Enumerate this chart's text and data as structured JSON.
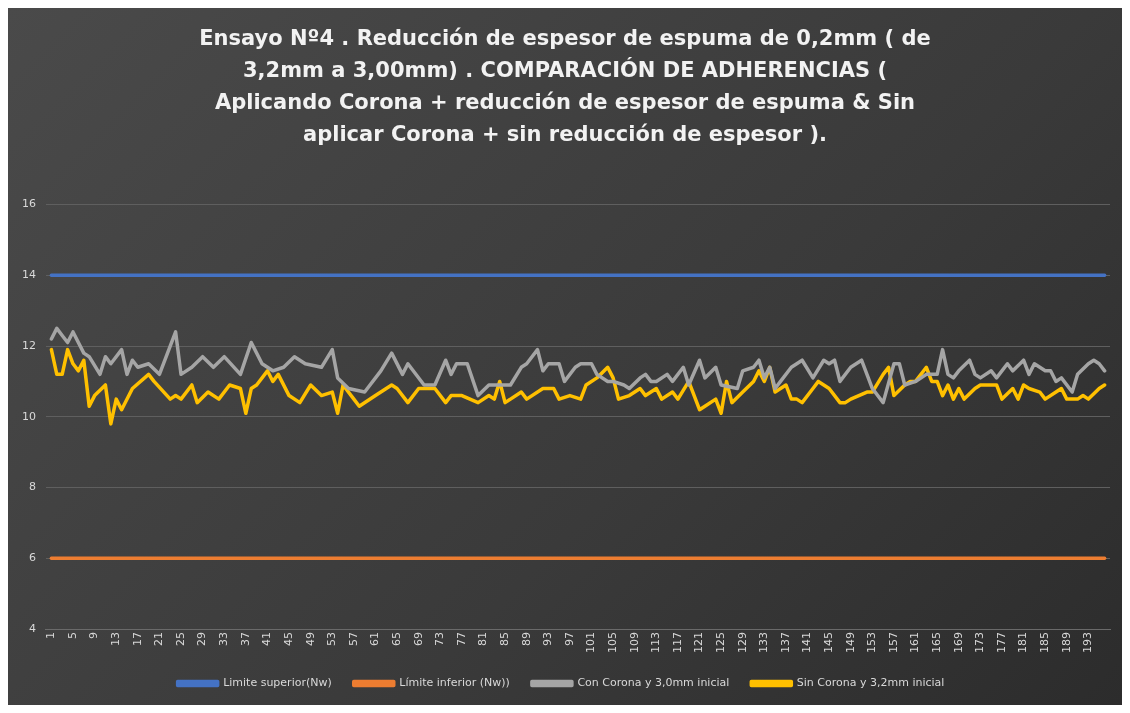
{
  "chart_data": {
    "type": "line",
    "title": "Ensayo Nº4 . Reducción de espesor de espuma de 0,2mm ( de 3,2mm a 3,00mm) . COMPARACIÓN DE ADHERENCIAS ( Aplicando Corona + reducción de espesor de espuma & Sin aplicar Corona + sin reducción de espesor ).",
    "xlim": [
      0,
      197
    ],
    "xticks": [
      1,
      5,
      9,
      13,
      17,
      21,
      25,
      29,
      33,
      37,
      41,
      45,
      49,
      53,
      57,
      61,
      65,
      69,
      73,
      77,
      81,
      85,
      89,
      93,
      97,
      101,
      105,
      109,
      113,
      117,
      121,
      125,
      129,
      133,
      137,
      141,
      145,
      149,
      153,
      157,
      161,
      165,
      169,
      173,
      177,
      181,
      185,
      189,
      193
    ],
    "ylim": [
      4,
      16
    ],
    "yticks": [
      4,
      6,
      8,
      10,
      12,
      14,
      16
    ],
    "grid": "y",
    "legend": "bottom",
    "series": [
      {
        "name": "Limite superior(Nw)",
        "color": "#4472c4",
        "x": [
          1,
          196
        ],
        "values": [
          14,
          14
        ]
      },
      {
        "name": "Límite inferior (Nw))",
        "color": "#ed7d31",
        "x": [
          1,
          196
        ],
        "values": [
          6,
          6
        ]
      },
      {
        "name": "Con Corona y 3,0mm inicial",
        "color": "#a5a5a5",
        "x": [
          1,
          2,
          3,
          4,
          5,
          7,
          8,
          10,
          11,
          12,
          14,
          15,
          16,
          17,
          19,
          21,
          24,
          25,
          27,
          29,
          31,
          33,
          36,
          38,
          40,
          42,
          44,
          46,
          48,
          51,
          53,
          54,
          56,
          59,
          62,
          64,
          66,
          67,
          70,
          72,
          74,
          75,
          76,
          78,
          80,
          82,
          85,
          86,
          88,
          89,
          91,
          92,
          93,
          95,
          96,
          98,
          99,
          101,
          102,
          104,
          105,
          107,
          108,
          110,
          111,
          112,
          113,
          115,
          116,
          118,
          119,
          121,
          122,
          124,
          125,
          128,
          129,
          131,
          132,
          133,
          134,
          135,
          136,
          138,
          139,
          140,
          142,
          144,
          145,
          146,
          147,
          149,
          151,
          152,
          153,
          155,
          157,
          158,
          159,
          161,
          163,
          165,
          166,
          167,
          168,
          169,
          171,
          172,
          173,
          175,
          176,
          178,
          179,
          181,
          182,
          183,
          185,
          186,
          187,
          188,
          190,
          191,
          193,
          194,
          195,
          196
        ],
        "values": [
          12.2,
          12.5,
          12.3,
          12.1,
          12.4,
          11.8,
          11.7,
          11.2,
          11.7,
          11.5,
          11.9,
          11.2,
          11.6,
          11.4,
          11.5,
          11.2,
          12.4,
          11.2,
          11.4,
          11.7,
          11.4,
          11.7,
          11.2,
          12.1,
          11.5,
          11.3,
          11.4,
          11.7,
          11.5,
          11.4,
          11.9,
          11.1,
          10.8,
          10.7,
          11.3,
          11.8,
          11.2,
          11.5,
          10.9,
          10.9,
          11.6,
          11.2,
          11.5,
          11.5,
          10.6,
          10.9,
          10.9,
          10.9,
          11.4,
          11.5,
          11.9,
          11.3,
          11.5,
          11.5,
          11.0,
          11.4,
          11.5,
          11.5,
          11.2,
          11.0,
          11.0,
          10.9,
          10.8,
          11.1,
          11.2,
          11.0,
          11.0,
          11.2,
          11.0,
          11.4,
          10.9,
          11.6,
          11.1,
          11.4,
          10.9,
          10.8,
          11.3,
          11.4,
          11.6,
          11.1,
          11.4,
          10.8,
          11.0,
          11.4,
          11.5,
          11.6,
          11.1,
          11.6,
          11.5,
          11.6,
          11.0,
          11.4,
          11.6,
          11.2,
          10.8,
          10.4,
          11.5,
          11.5,
          10.9,
          11.0,
          11.2,
          11.2,
          11.9,
          11.2,
          11.1,
          11.3,
          11.6,
          11.2,
          11.1,
          11.3,
          11.1,
          11.5,
          11.3,
          11.6,
          11.2,
          11.5,
          11.3,
          11.3,
          11.0,
          11.1,
          10.7,
          11.2,
          11.5,
          11.6,
          11.5,
          11.3
        ]
      },
      {
        "name": "Sin Corona y 3,2mm inicial",
        "color": "#ffc000",
        "x": [
          1,
          2,
          3,
          4,
          5,
          6,
          7,
          8,
          9,
          11,
          12,
          13,
          14,
          16,
          19,
          20,
          23,
          24,
          25,
          27,
          28,
          30,
          32,
          34,
          36,
          37,
          38,
          39,
          41,
          42,
          43,
          45,
          47,
          49,
          51,
          53,
          54,
          55,
          57,
          58,
          61,
          63,
          64,
          65,
          67,
          69,
          72,
          74,
          75,
          77,
          80,
          82,
          83,
          84,
          85,
          88,
          89,
          92,
          94,
          95,
          97,
          99,
          100,
          102,
          104,
          105,
          106,
          108,
          110,
          111,
          113,
          114,
          116,
          117,
          119,
          121,
          122,
          124,
          125,
          126,
          127,
          129,
          131,
          132,
          133,
          134,
          135,
          137,
          138,
          139,
          140,
          142,
          143,
          145,
          147,
          148,
          149,
          152,
          153,
          155,
          156,
          157,
          159,
          160,
          161,
          163,
          164,
          165,
          166,
          167,
          168,
          169,
          170,
          172,
          173,
          175,
          176,
          177,
          179,
          180,
          181,
          182,
          184,
          185,
          187,
          188,
          189,
          191,
          192,
          193,
          195,
          196
        ],
        "values": [
          11.9,
          11.2,
          11.2,
          11.9,
          11.5,
          11.3,
          11.6,
          10.3,
          10.6,
          10.9,
          9.8,
          10.5,
          10.2,
          10.8,
          11.2,
          11.0,
          10.5,
          10.6,
          10.5,
          10.9,
          10.4,
          10.7,
          10.5,
          10.9,
          10.8,
          10.1,
          10.8,
          10.9,
          11.3,
          11.0,
          11.2,
          10.6,
          10.4,
          10.9,
          10.6,
          10.7,
          10.1,
          10.9,
          10.5,
          10.3,
          10.6,
          10.8,
          10.9,
          10.8,
          10.4,
          10.8,
          10.8,
          10.4,
          10.6,
          10.6,
          10.4,
          10.6,
          10.5,
          11.0,
          10.4,
          10.7,
          10.5,
          10.8,
          10.8,
          10.5,
          10.6,
          10.5,
          10.9,
          11.1,
          11.4,
          11.1,
          10.5,
          10.6,
          10.8,
          10.6,
          10.8,
          10.5,
          10.7,
          10.5,
          11.0,
          10.2,
          10.3,
          10.5,
          10.1,
          11.0,
          10.4,
          10.7,
          11.0,
          11.3,
          11.0,
          11.4,
          10.7,
          10.9,
          10.5,
          10.5,
          10.4,
          10.8,
          11.0,
          10.8,
          10.4,
          10.4,
          10.5,
          10.7,
          10.7,
          11.2,
          11.4,
          10.6,
          10.9,
          11.0,
          11.0,
          11.4,
          11.0,
          11.0,
          10.6,
          10.9,
          10.5,
          10.8,
          10.5,
          10.8,
          10.9,
          10.9,
          10.9,
          10.5,
          10.8,
          10.5,
          10.9,
          10.8,
          10.7,
          10.5,
          10.7,
          10.8,
          10.5,
          10.5,
          10.6,
          10.5,
          10.8,
          10.9
        ]
      }
    ]
  }
}
